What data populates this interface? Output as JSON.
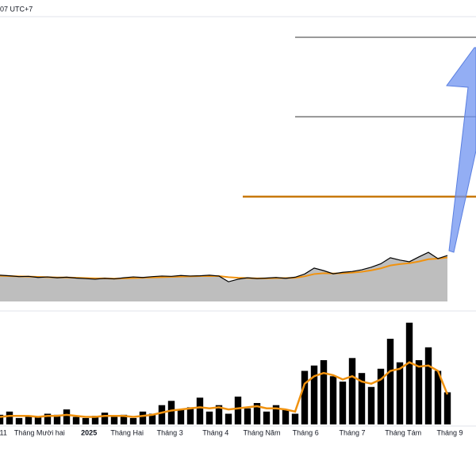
{
  "header": "07 UTC+7",
  "chart_data": [
    {
      "type": "line",
      "x": [
        0,
        2,
        4,
        6,
        8,
        10,
        12,
        14,
        16,
        18,
        20,
        22,
        24,
        26,
        28,
        30,
        32,
        34,
        36,
        38,
        40,
        42,
        44,
        46,
        48,
        50,
        52,
        54,
        56,
        58,
        60,
        62,
        64,
        66,
        68,
        70,
        72,
        74,
        76,
        78,
        80,
        82,
        84,
        86,
        88,
        90,
        92,
        94
      ],
      "series": [
        {
          "color": "#000000",
          "values": [
            9.2,
            9.0,
            8.7,
            8.8,
            8.4,
            8.6,
            8.3,
            8.5,
            8.2,
            8.0,
            7.8,
            8.1,
            7.9,
            8.3,
            8.6,
            8.4,
            8.7,
            8.9,
            8.8,
            9.1,
            8.9,
            9.0,
            9.2,
            8.9,
            6.9,
            7.8,
            8.3,
            8.0,
            8.2,
            8.4,
            8.1,
            8.5,
            9.6,
            11.7,
            10.8,
            9.7,
            10.2,
            10.5,
            11.1,
            12.0,
            13.2,
            15.3,
            14.5,
            13.9,
            15.6,
            17.2,
            15.0,
            16.1
          ]
        },
        {
          "color": "#f0920f",
          "values": [
            9.0,
            8.9,
            8.8,
            8.7,
            8.6,
            8.5,
            8.4,
            8.4,
            8.3,
            8.2,
            8.1,
            8.1,
            8.0,
            8.1,
            8.2,
            8.3,
            8.4,
            8.5,
            8.6,
            8.7,
            8.8,
            8.9,
            8.9,
            8.9,
            8.5,
            8.3,
            8.2,
            8.1,
            8.1,
            8.2,
            8.2,
            8.3,
            8.8,
            9.6,
            9.9,
            9.8,
            9.9,
            10.1,
            10.4,
            10.9,
            11.6,
            12.6,
            13.1,
            13.4,
            14.0,
            14.8,
            15.0,
            15.4
          ]
        }
      ],
      "area_color": "#b3b3b3",
      "levels": [
        {
          "value": 92.5,
          "from": 62,
          "color": "#333333"
        },
        {
          "value": 64.7,
          "from": 62,
          "color": "#333333"
        },
        {
          "value": 36.7,
          "from": 51,
          "color": "#c8780a"
        }
      ],
      "xlim": [
        0,
        100
      ],
      "ylim": [
        0,
        100
      ]
    },
    {
      "type": "bar",
      "x": [
        0,
        2,
        4,
        6,
        8,
        10,
        12,
        14,
        16,
        18,
        20,
        22,
        24,
        26,
        28,
        30,
        32,
        34,
        36,
        38,
        40,
        42,
        44,
        46,
        48,
        50,
        52,
        54,
        56,
        58,
        60,
        62,
        64,
        66,
        68,
        70,
        72,
        74,
        76,
        78,
        80,
        82,
        84,
        86,
        88,
        90,
        92,
        94
      ],
      "series": [
        {
          "color": "#000000",
          "values": [
            9,
            12,
            6,
            8,
            7,
            10,
            9,
            14,
            7,
            6,
            8,
            11,
            7,
            9,
            6,
            12,
            10,
            18,
            22,
            14,
            16,
            25,
            12,
            18,
            10,
            26,
            15,
            20,
            12,
            18,
            14,
            10,
            50,
            55,
            60,
            45,
            40,
            62,
            48,
            35,
            52,
            80,
            58,
            95,
            60,
            72,
            50,
            30
          ]
        },
        {
          "color": "#f0920f",
          "values": [
            7,
            8,
            8,
            8,
            7,
            8,
            8,
            9,
            8,
            7,
            7,
            8,
            8,
            8,
            7,
            8,
            9,
            11,
            13,
            14,
            15,
            16,
            15,
            16,
            14,
            15,
            16,
            17,
            15,
            15,
            14,
            12,
            38,
            45,
            48,
            46,
            42,
            45,
            40,
            38,
            42,
            50,
            52,
            58,
            54,
            55,
            50,
            28
          ]
        }
      ],
      "xlim": [
        0,
        100
      ],
      "ylim": [
        0,
        100
      ],
      "xticks": [
        {
          "value": 0.7,
          "label": "11"
        },
        {
          "value": 8.3,
          "label": "Tháng Mười hai"
        },
        {
          "value": 18.7,
          "label": "2025",
          "bold": true
        },
        {
          "value": 26.7,
          "label": "Tháng Hai"
        },
        {
          "value": 35.7,
          "label": "Tháng 3"
        },
        {
          "value": 45.3,
          "label": "Tháng 4"
        },
        {
          "value": 55,
          "label": "Tháng Năm"
        },
        {
          "value": 64.2,
          "label": "Tháng 6"
        },
        {
          "value": 74,
          "label": "Tháng 7"
        },
        {
          "value": 84.7,
          "label": "Tháng Tám"
        },
        {
          "value": 94.5,
          "label": "Tháng 9"
        }
      ]
    }
  ]
}
